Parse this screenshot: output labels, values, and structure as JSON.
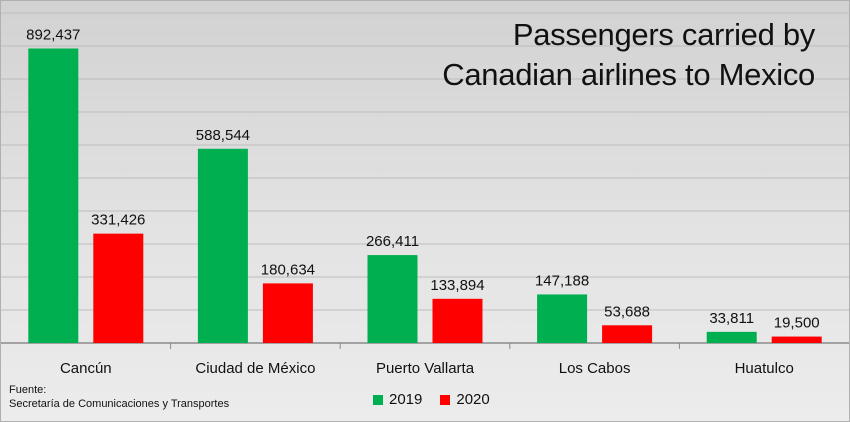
{
  "title_lines": [
    "Passengers carried by",
    "Canadian airlines to Mexico"
  ],
  "source": {
    "line1": "Fuente:",
    "line2": "Secretaría de Comunicaciones y Transportes"
  },
  "colors": {
    "2019": "#00b050",
    "2020": "#ff0000"
  },
  "chart_data": {
    "type": "bar",
    "title": "Passengers carried by Canadian airlines to Mexico",
    "categories": [
      "Cancún",
      "Ciudad de México",
      "Puerto Vallarta",
      "Los Cabos",
      "Huatulco"
    ],
    "series": [
      {
        "name": "2019",
        "values": [
          892437,
          588544,
          266411,
          147188,
          33811
        ],
        "labels": [
          "892,437",
          "588,544",
          "266,411",
          "147,188",
          "33,811"
        ]
      },
      {
        "name": "2020",
        "values": [
          331426,
          180634,
          133894,
          53688,
          19500
        ],
        "labels": [
          "331,426",
          "180,634",
          "133,894",
          "53,688",
          "19,500"
        ]
      }
    ],
    "ylim": [
      0,
      1000000
    ],
    "grid": true,
    "legend_position": "bottom"
  }
}
